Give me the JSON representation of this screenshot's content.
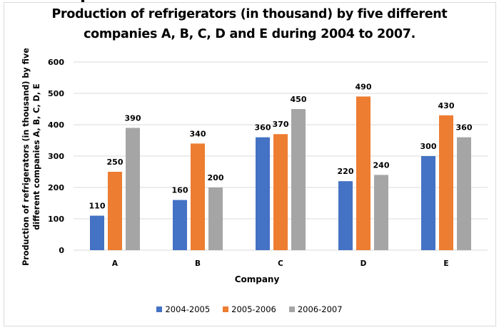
{
  "chart_data": {
    "type": "bar",
    "title": "Production of refrigerators (in thousand) by five different companies A, B, C, D and E during 2004 to 2007.",
    "title_lines": [
      "Production of refrigerators (in thousand) by five different",
      "companies A, B, C, D and E during 2004 to 2007."
    ],
    "xlabel": "Company",
    "ylabel": "Production of refrigerators (in thousand) by five different companies A, B, C, D, E",
    "ylabel_lines": [
      "Production of refrigerators (in thousand) by five",
      "different companies A, B, C, D, E"
    ],
    "categories": [
      "A",
      "B",
      "C",
      "D",
      "E"
    ],
    "series": [
      {
        "name": "2004-2005",
        "color": "#4472c4",
        "values": [
          110,
          160,
          360,
          220,
          300
        ]
      },
      {
        "name": "2005-2006",
        "color": "#ed7d31",
        "values": [
          250,
          340,
          370,
          490,
          430
        ]
      },
      {
        "name": "2006-2007",
        "color": "#a5a5a5",
        "values": [
          390,
          200,
          450,
          240,
          360
        ]
      }
    ],
    "ylim": [
      0,
      600
    ],
    "yticks": [
      0,
      100,
      200,
      300,
      400,
      500,
      600
    ],
    "grid": true,
    "data_labels": true,
    "legend_position": "bottom"
  }
}
